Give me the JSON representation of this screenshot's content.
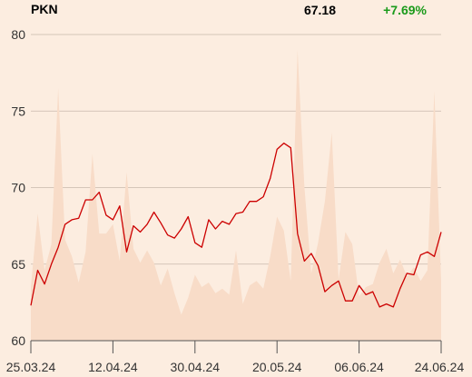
{
  "header": {
    "ticker": "PKN",
    "price": "67.18",
    "change": "+7.69%"
  },
  "colors": {
    "background": "#fcede0",
    "line": "#cc0000",
    "volume_area": "#f8dcc8",
    "change_positive": "#1a9a1a",
    "grid": "#c9b9ac"
  },
  "chart_data": {
    "type": "line",
    "title": "PKN",
    "xlabel": "",
    "ylabel": "",
    "ylim": [
      60,
      80
    ],
    "yticks": [
      60,
      65,
      70,
      75,
      80
    ],
    "xticks": [
      "25.03.24",
      "12.04.24",
      "30.04.24",
      "20.05.24",
      "06.06.24",
      "24.06.24"
    ],
    "grid": true,
    "series": [
      {
        "values": [
          62.3,
          64.6,
          63.7,
          65.0,
          66.1,
          67.6,
          67.9,
          68.0,
          69.2,
          69.2,
          69.7,
          68.2,
          67.9,
          68.8,
          65.8,
          67.5,
          67.1,
          67.6,
          68.4,
          67.7,
          66.9,
          66.7,
          67.3,
          68.1,
          66.4,
          66.1,
          67.9,
          67.3,
          67.8,
          67.6,
          68.3,
          68.4,
          69.1,
          69.1,
          69.4,
          70.6,
          72.5,
          72.9,
          72.6,
          67.0,
          65.2,
          65.7,
          64.9,
          63.2,
          63.6,
          63.9,
          62.6,
          62.6,
          63.6,
          63.0,
          63.2,
          62.2,
          62.4,
          62.2,
          63.4,
          64.4,
          64.3,
          65.6,
          65.8,
          65.5,
          67.1
        ]
      },
      {
        "values": [
          63.5,
          68.3,
          64.6,
          66.3,
          76.5,
          66.6,
          65.5,
          63.8,
          65.8,
          72.2,
          67.0,
          67.0,
          67.6,
          65.2,
          71.0,
          66.0,
          65.1,
          65.9,
          65.1,
          63.6,
          64.7,
          63.1,
          61.7,
          62.8,
          64.3,
          63.5,
          63.8,
          63.1,
          63.4,
          63.0,
          65.9,
          62.4,
          63.6,
          63.9,
          63.4,
          65.5,
          68.1,
          67.2,
          63.9,
          79.0,
          70.1,
          64.4,
          66.4,
          69.1,
          73.6,
          64.0,
          67.1,
          66.3,
          62.9,
          63.5,
          63.7,
          65.1,
          66.0,
          64.4,
          65.3,
          64.2,
          64.8,
          63.9,
          64.6,
          76.3,
          63.9
        ]
      }
    ]
  }
}
